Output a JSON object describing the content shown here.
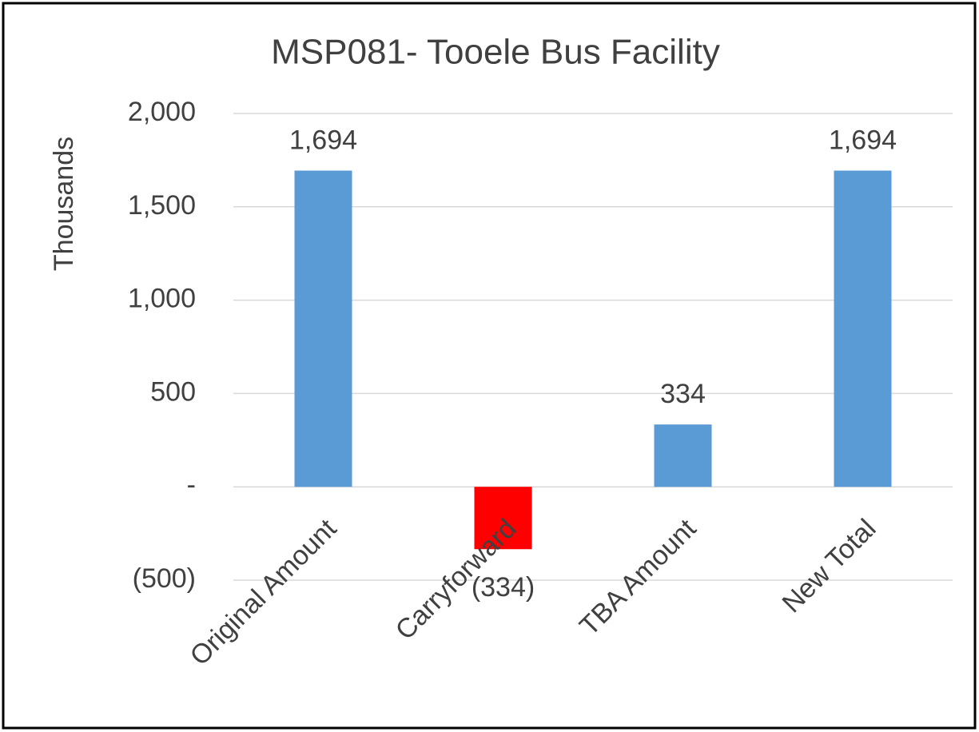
{
  "chart_data": {
    "type": "bar",
    "title": "MSP081- Tooele Bus Facility",
    "y_label": "Thousands",
    "categories": [
      "Original Amount",
      "Carryforward",
      "TBA Amount",
      "New Total"
    ],
    "values": [
      1694,
      -334,
      334,
      1694
    ],
    "value_labels": [
      "1,694",
      "(334)",
      "334",
      "1,694"
    ],
    "colors": [
      "#5b9bd5",
      "#ff0000",
      "#5b9bd5",
      "#5b9bd5"
    ],
    "ylim": [
      -500,
      2000
    ],
    "yticks": [
      {
        "value": -500,
        "label": "(500)"
      },
      {
        "value": 0,
        "label": "-"
      },
      500,
      {
        "value": 1000,
        "label": "1,000"
      },
      {
        "value": 1500,
        "label": "1,500"
      },
      {
        "value": 2000,
        "label": "2,000"
      }
    ],
    "grid": true
  }
}
